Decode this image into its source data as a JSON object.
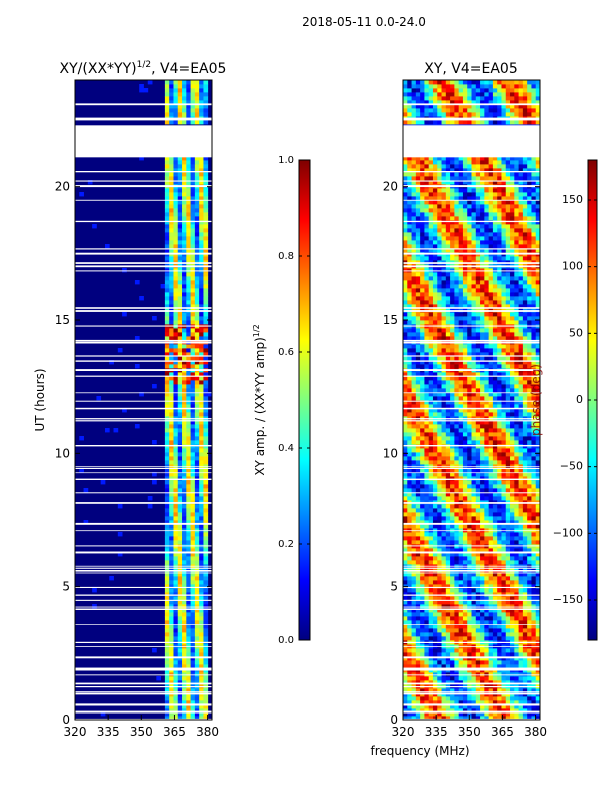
{
  "suptitle": "2018-05-11 0.0-24.0",
  "colors": {
    "jet_stops": [
      "#00007f",
      "#0000ff",
      "#007fff",
      "#00ffff",
      "#7fff7f",
      "#ffff00",
      "#ff7f00",
      "#ff0000",
      "#7f0000"
    ],
    "background_blue": "#00007f",
    "gap": "#ffffff"
  },
  "chart_data": [
    {
      "type": "heatmap",
      "title": "XY/(XX*YY)",
      "title_superscript": "1/2",
      "title_suffix": ", V4=EA05",
      "xlabel": "",
      "ylabel": "UT (hours)",
      "xlim": [
        320,
        382
      ],
      "ylim": [
        0,
        24
      ],
      "x_ticks": [
        320,
        335,
        350,
        365,
        380
      ],
      "y_ticks": [
        0,
        5,
        10,
        15,
        20
      ],
      "active_band_mhz": [
        361,
        380
      ],
      "flagged_interval_hours": [
        21.1,
        22.3
      ],
      "colorbar": {
        "label": "XY amp. / (XX*YY amp)",
        "label_superscript": "1/2",
        "range": [
          0.0,
          1.0
        ],
        "ticks": [
          "0.0",
          "0.2",
          "0.4",
          "0.6",
          "0.8",
          "1.0"
        ]
      }
    },
    {
      "type": "heatmap",
      "title": "XY, V4=EA05",
      "xlabel": "frequency (MHz)",
      "ylabel": "",
      "xlim": [
        320,
        382
      ],
      "ylim": [
        0,
        24
      ],
      "x_ticks": [
        320,
        335,
        350,
        365,
        380
      ],
      "y_ticks": [
        0,
        5,
        10,
        15,
        20
      ],
      "flagged_interval_hours": [
        21.1,
        22.3
      ],
      "colorbar": {
        "label": "phase (deg)",
        "range": [
          -180,
          180
        ],
        "ticks": [
          "150",
          "100",
          "50",
          "0",
          "−50",
          "−100",
          "−150"
        ]
      }
    }
  ]
}
